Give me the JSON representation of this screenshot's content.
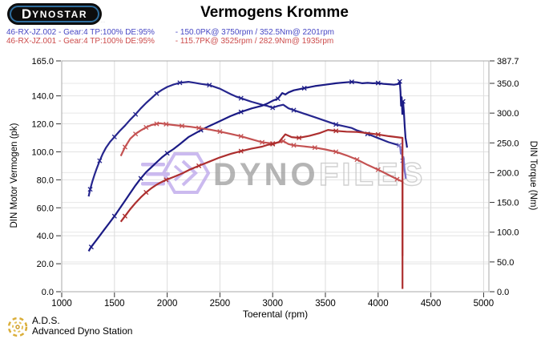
{
  "header": {
    "logo_d": "D",
    "logo_rest": "YNOSTAR",
    "logo_tagline": "···",
    "title": "Vermogens Kromme"
  },
  "legend": {
    "runs": [
      {
        "id": "46-RX-JZ.002",
        "info": "46-RX-JZ.002 - Gear:4 TP:100% DE:95%",
        "peaks": "- 150.0PK@ 3750rpm / 352.5Nm@ 2201rpm",
        "color": "#4747c4"
      },
      {
        "id": "46-RX-JZ.001",
        "info": "46-RX-JZ.001 - Gear:4 TP:100% DE:95%",
        "peaks": "- 115.7PK@ 3525rpm / 282.9Nm@ 1935rpm",
        "color": "#cc4b4b"
      }
    ]
  },
  "watermark": {
    "brand_bold": "DYNO",
    "brand_light": "FILES",
    "logo_color": "#bfaaec",
    "text_color_bold": "#a3a3a3",
    "text_color_light": "#c6c6c6"
  },
  "footer": {
    "abbr": "A.D.S.",
    "name": "Advanced Dyno Station",
    "logo_color": "#d4a017"
  },
  "chart_data": {
    "type": "line",
    "title": "Vermogens Kromme",
    "xlabel": "Toerental (rpm)",
    "ylabel_left": "DIN Motor Vermogen (pk)",
    "ylabel_right": "DIN Torque (Nm)",
    "x_range": [
      1000,
      5050
    ],
    "y_left_range": [
      0,
      165
    ],
    "y_right_range": [
      0,
      387.7
    ],
    "grid": true,
    "x_ticks": [
      [
        1000,
        "1000"
      ],
      [
        1500,
        "1500"
      ],
      [
        2000,
        "2000"
      ],
      [
        2500,
        "2500"
      ],
      [
        3000,
        "3000"
      ],
      [
        3500,
        "3500"
      ],
      [
        4000,
        "4000"
      ],
      [
        4500,
        "4500"
      ],
      [
        5000,
        "5000"
      ]
    ],
    "y_left_ticks": [
      [
        165,
        "165.0"
      ],
      [
        140,
        "140.0"
      ],
      [
        120,
        "120.0"
      ],
      [
        100,
        "100.0"
      ],
      [
        80,
        "80.0"
      ],
      [
        60,
        "60.0"
      ],
      [
        40,
        "40.0"
      ],
      [
        20,
        "20.0"
      ],
      [
        0,
        "0.0"
      ]
    ],
    "y_right_ticks": [
      [
        387.7,
        "387.7"
      ],
      [
        350,
        "350.0"
      ],
      [
        300,
        "300.0"
      ],
      [
        250,
        "250.0"
      ],
      [
        200,
        "200.0"
      ],
      [
        150,
        "150.0"
      ],
      [
        100,
        "100.0"
      ],
      [
        50,
        "50.0"
      ],
      [
        0,
        "0.0"
      ]
    ],
    "series": [
      {
        "name": "002-torque",
        "run": "46-RX-JZ.002",
        "unit": "Nm",
        "axis": "right",
        "color": "#26268e",
        "end_color": "#7b74c8",
        "end_from": 4200,
        "marker": "x",
        "marker_step": 4,
        "peak": {
          "value": 352.5,
          "rpm": 2201
        },
        "points": [
          [
            1255,
            160
          ],
          [
            1270,
            172
          ],
          [
            1290,
            185
          ],
          [
            1310,
            196
          ],
          [
            1330,
            206
          ],
          [
            1360,
            220
          ],
          [
            1390,
            232
          ],
          [
            1420,
            242
          ],
          [
            1460,
            252
          ],
          [
            1500,
            260
          ],
          [
            1550,
            270
          ],
          [
            1600,
            279
          ],
          [
            1650,
            289
          ],
          [
            1700,
            298
          ],
          [
            1750,
            308
          ],
          [
            1800,
            317
          ],
          [
            1850,
            325
          ],
          [
            1900,
            333
          ],
          [
            1950,
            339
          ],
          [
            2000,
            344
          ],
          [
            2060,
            348
          ],
          [
            2120,
            351
          ],
          [
            2201,
            352.5
          ],
          [
            2260,
            351
          ],
          [
            2320,
            349
          ],
          [
            2400,
            347
          ],
          [
            2500,
            341
          ],
          [
            2600,
            332
          ],
          [
            2650,
            328
          ],
          [
            2700,
            325
          ],
          [
            2800,
            319
          ],
          [
            2900,
            314
          ],
          [
            2950,
            312
          ],
          [
            3000,
            309
          ],
          [
            3050,
            312
          ],
          [
            3100,
            314
          ],
          [
            3150,
            308
          ],
          [
            3200,
            305
          ],
          [
            3300,
            299
          ],
          [
            3400,
            293
          ],
          [
            3500,
            287
          ],
          [
            3600,
            281
          ],
          [
            3700,
            277
          ],
          [
            3750,
            275
          ],
          [
            3800,
            271
          ],
          [
            3900,
            265
          ],
          [
            4000,
            258
          ],
          [
            4100,
            251
          ],
          [
            4160,
            248
          ],
          [
            4200,
            246
          ],
          [
            4210,
            242
          ],
          [
            4216,
            232
          ],
          [
            4224,
            238
          ],
          [
            4232,
            220
          ],
          [
            4240,
            226
          ],
          [
            4250,
            205
          ],
          [
            4258,
            196
          ],
          [
            4262,
            190
          ]
        ]
      },
      {
        "name": "002-power",
        "run": "46-RX-JZ.002",
        "unit": "pk",
        "axis": "left",
        "color": "#1b1b85",
        "marker": "x",
        "marker_step": 5,
        "peak": {
          "value": 150.0,
          "rpm": 3750
        },
        "points": [
          [
            1255,
            29
          ],
          [
            1280,
            32
          ],
          [
            1320,
            36
          ],
          [
            1360,
            40
          ],
          [
            1400,
            44
          ],
          [
            1450,
            49
          ],
          [
            1500,
            54
          ],
          [
            1550,
            59.5
          ],
          [
            1600,
            65
          ],
          [
            1650,
            70.5
          ],
          [
            1700,
            76
          ],
          [
            1750,
            81
          ],
          [
            1800,
            85.5
          ],
          [
            1850,
            89
          ],
          [
            1900,
            92.5
          ],
          [
            1950,
            96
          ],
          [
            2000,
            99
          ],
          [
            2060,
            102
          ],
          [
            2120,
            105.5
          ],
          [
            2201,
            110.5
          ],
          [
            2260,
            113
          ],
          [
            2320,
            115.5
          ],
          [
            2400,
            118.5
          ],
          [
            2500,
            122
          ],
          [
            2600,
            125.5
          ],
          [
            2650,
            127
          ],
          [
            2700,
            128.5
          ],
          [
            2800,
            131
          ],
          [
            2900,
            133
          ],
          [
            2950,
            134.5
          ],
          [
            3000,
            136.5
          ],
          [
            3050,
            138
          ],
          [
            3091,
            142
          ],
          [
            3120,
            141
          ],
          [
            3150,
            142.5
          ],
          [
            3200,
            144
          ],
          [
            3300,
            145.5
          ],
          [
            3400,
            147
          ],
          [
            3500,
            148
          ],
          [
            3600,
            149
          ],
          [
            3700,
            149.7
          ],
          [
            3750,
            150
          ],
          [
            3800,
            149.7
          ],
          [
            3850,
            149
          ],
          [
            3900,
            149.3
          ],
          [
            3950,
            149
          ],
          [
            4000,
            149.2
          ],
          [
            4050,
            148.6
          ],
          [
            4100,
            148.3
          ],
          [
            4150,
            148
          ],
          [
            4192,
            148.5
          ],
          [
            4205,
            150.3
          ],
          [
            4212,
            143
          ],
          [
            4217,
            133
          ],
          [
            4223,
            139
          ],
          [
            4229,
            127
          ],
          [
            4236,
            136
          ],
          [
            4244,
            129
          ],
          [
            4252,
            118
          ],
          [
            4260,
            110
          ],
          [
            4270,
            105.5
          ],
          [
            4274,
            103
          ]
        ]
      },
      {
        "name": "001-torque",
        "run": "46-RX-JZ.001",
        "unit": "Nm",
        "axis": "right",
        "color": "#c45252",
        "marker": "x",
        "marker_step": 2,
        "peak": {
          "value": 282.9,
          "rpm": 1935
        },
        "points": [
          [
            1560,
            228
          ],
          [
            1600,
            243
          ],
          [
            1650,
            257
          ],
          [
            1700,
            265
          ],
          [
            1750,
            271
          ],
          [
            1800,
            276
          ],
          [
            1850,
            280
          ],
          [
            1900,
            282
          ],
          [
            1935,
            282.9
          ],
          [
            1990,
            281.5
          ],
          [
            2060,
            280
          ],
          [
            2140,
            278.5
          ],
          [
            2220,
            277
          ],
          [
            2300,
            275
          ],
          [
            2400,
            272.5
          ],
          [
            2500,
            269
          ],
          [
            2600,
            265
          ],
          [
            2700,
            261
          ],
          [
            2800,
            256
          ],
          [
            2900,
            251
          ],
          [
            2954,
            250
          ],
          [
            3000,
            249
          ],
          [
            3060,
            251
          ],
          [
            3100,
            253
          ],
          [
            3150,
            248
          ],
          [
            3200,
            246
          ],
          [
            3300,
            244
          ],
          [
            3400,
            242
          ],
          [
            3500,
            239
          ],
          [
            3600,
            235
          ],
          [
            3700,
            229
          ],
          [
            3800,
            222
          ],
          [
            3900,
            213
          ],
          [
            4000,
            205
          ],
          [
            4100,
            196
          ],
          [
            4180,
            189
          ],
          [
            4231,
            185
          ],
          [
            4231,
            60
          ]
        ]
      },
      {
        "name": "001-power",
        "run": "46-RX-JZ.001",
        "unit": "pk",
        "axis": "left",
        "color": "#ad2f2f",
        "marker": "x",
        "marker_step": 4,
        "peak": {
          "value": 115.7,
          "rpm": 3525
        },
        "points": [
          [
            1560,
            50
          ],
          [
            1600,
            54
          ],
          [
            1650,
            59
          ],
          [
            1700,
            63.5
          ],
          [
            1750,
            67.5
          ],
          [
            1800,
            71
          ],
          [
            1850,
            74
          ],
          [
            1900,
            76.5
          ],
          [
            1935,
            78
          ],
          [
            1990,
            80
          ],
          [
            2060,
            82
          ],
          [
            2140,
            84.5
          ],
          [
            2220,
            87.5
          ],
          [
            2300,
            90
          ],
          [
            2400,
            93
          ],
          [
            2500,
            96
          ],
          [
            2600,
            98.5
          ],
          [
            2700,
            100.5
          ],
          [
            2800,
            102.3
          ],
          [
            2900,
            103.7
          ],
          [
            2954,
            105
          ],
          [
            3000,
            105.5
          ],
          [
            3060,
            107
          ],
          [
            3120,
            112.5
          ],
          [
            3180,
            110.5
          ],
          [
            3250,
            110
          ],
          [
            3350,
            111.5
          ],
          [
            3450,
            113.5
          ],
          [
            3525,
            115.7
          ],
          [
            3600,
            115
          ],
          [
            3700,
            114.4
          ],
          [
            3800,
            114.2
          ],
          [
            3900,
            113.4
          ],
          [
            4000,
            112.4
          ],
          [
            4100,
            111.2
          ],
          [
            4200,
            110.3
          ],
          [
            4231,
            110
          ],
          [
            4231,
            2
          ]
        ]
      }
    ]
  }
}
